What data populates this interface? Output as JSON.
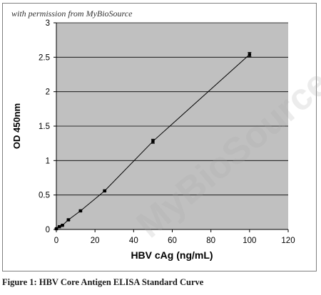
{
  "permission_note": "with permission from MyBioSource",
  "watermark_text": "MyBioSource.com",
  "caption": "Figure 1: HBV Core Antigen ELISA Standard Curve",
  "colors": {
    "plot_background": "#c0c0c0",
    "gridline": "#000000",
    "series": "#000000"
  },
  "chart_data": {
    "type": "scatter",
    "title": "",
    "xlabel": "HBV cAg (ng/mL)",
    "ylabel": "OD 450nm",
    "xlim": [
      0,
      120
    ],
    "ylim": [
      0,
      3
    ],
    "xticks": [
      0,
      20,
      40,
      60,
      80,
      100,
      120
    ],
    "yticks": [
      0,
      0.5,
      1,
      1.5,
      2,
      2.5,
      3
    ],
    "ytick_labels": [
      "0",
      "0.5",
      "1",
      "1.5",
      "2",
      "2.5",
      "3"
    ],
    "grid": "horizontal",
    "legend": "none",
    "series": [
      {
        "x": [
          0,
          1.56,
          3.13,
          6.25,
          12.5,
          25,
          50,
          100
        ],
        "y": [
          0.01,
          0.04,
          0.06,
          0.14,
          0.27,
          0.56,
          1.28,
          2.54
        ],
        "error": [
          0.005,
          0.005,
          0.005,
          0.01,
          0.01,
          0.01,
          0.03,
          0.03
        ],
        "markers": true,
        "connected": true
      }
    ]
  }
}
